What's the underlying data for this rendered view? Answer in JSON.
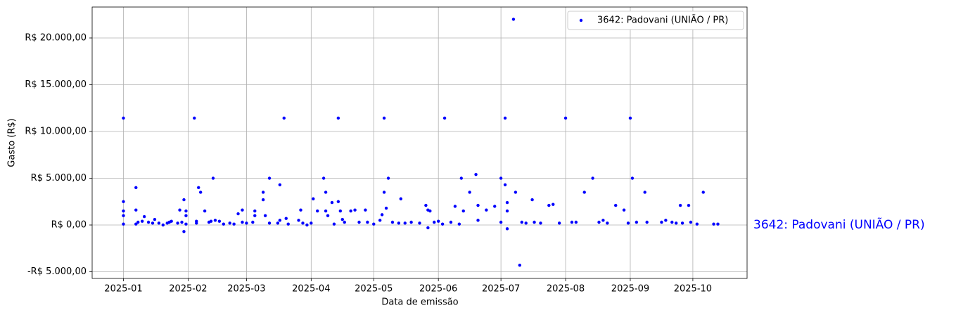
{
  "chart_data": {
    "type": "scatter",
    "x_label": "Data de emissão",
    "y_label": "Gasto (R$)",
    "annotation": "3642: Padovani (UNIÃO / PR)",
    "legend_position": "upper right",
    "grid": true,
    "xlim": [
      "2024-12-17",
      "2025-10-27"
    ],
    "xticks": [
      {
        "value": "2025-01-01",
        "label": "2025-01"
      },
      {
        "value": "2025-02-01",
        "label": "2025-02"
      },
      {
        "value": "2025-03-01",
        "label": "2025-03"
      },
      {
        "value": "2025-04-01",
        "label": "2025-04"
      },
      {
        "value": "2025-05-01",
        "label": "2025-05"
      },
      {
        "value": "2025-06-01",
        "label": "2025-06"
      },
      {
        "value": "2025-07-01",
        "label": "2025-07"
      },
      {
        "value": "2025-08-01",
        "label": "2025-08"
      },
      {
        "value": "2025-09-01",
        "label": "2025-09"
      },
      {
        "value": "2025-10-01",
        "label": "2025-10"
      }
    ],
    "ylim": [
      -5714,
      23308
    ],
    "yticks": [
      {
        "value": -5000,
        "label": "-R$ 5.000,00"
      },
      {
        "value": 0,
        "label": "R$ 0,00"
      },
      {
        "value": 5000,
        "label": "R$ 5.000,00"
      },
      {
        "value": 10000,
        "label": "R$ 10.000,00"
      },
      {
        "value": 15000,
        "label": "R$ 15.000,00"
      },
      {
        "value": 20000,
        "label": "R$ 20.000,00"
      }
    ],
    "series": [
      {
        "name": "3642: Padovani (UNIÃO / PR)",
        "color": "#0000ff",
        "x": [
          "2025-01-01",
          "2025-01-01",
          "2025-01-01",
          "2025-01-01",
          "2025-01-01",
          "2025-01-07",
          "2025-01-07",
          "2025-01-07",
          "2025-01-08",
          "2025-01-10",
          "2025-01-11",
          "2025-01-13",
          "2025-01-15",
          "2025-01-16",
          "2025-01-18",
          "2025-01-20",
          "2025-01-22",
          "2025-01-23",
          "2025-01-24",
          "2025-01-27",
          "2025-01-28",
          "2025-01-29",
          "2025-01-30",
          "2025-01-30",
          "2025-01-31",
          "2025-01-31",
          "2025-01-31",
          "2025-02-04",
          "2025-02-05",
          "2025-02-05",
          "2025-02-06",
          "2025-02-07",
          "2025-02-09",
          "2025-02-11",
          "2025-02-12",
          "2025-02-13",
          "2025-02-14",
          "2025-02-16",
          "2025-02-18",
          "2025-02-21",
          "2025-02-23",
          "2025-02-25",
          "2025-02-27",
          "2025-02-27",
          "2025-03-01",
          "2025-03-04",
          "2025-03-05",
          "2025-03-05",
          "2025-03-09",
          "2025-03-09",
          "2025-03-10",
          "2025-03-12",
          "2025-03-12",
          "2025-03-16",
          "2025-03-17",
          "2025-03-17",
          "2025-03-19",
          "2025-03-20",
          "2025-03-21",
          "2025-03-26",
          "2025-03-27",
          "2025-03-28",
          "2025-03-30",
          "2025-04-01",
          "2025-04-02",
          "2025-04-04",
          "2025-04-07",
          "2025-04-08",
          "2025-04-08",
          "2025-04-09",
          "2025-04-11",
          "2025-04-12",
          "2025-04-14",
          "2025-04-14",
          "2025-04-15",
          "2025-04-16",
          "2025-04-17",
          "2025-04-20",
          "2025-04-22",
          "2025-04-24",
          "2025-04-27",
          "2025-04-28",
          "2025-05-01",
          "2025-05-04",
          "2025-05-05",
          "2025-05-06",
          "2025-05-06",
          "2025-05-07",
          "2025-05-08",
          "2025-05-10",
          "2025-05-13",
          "2025-05-14",
          "2025-05-16",
          "2025-05-19",
          "2025-05-23",
          "2025-05-26",
          "2025-05-27",
          "2025-05-27",
          "2025-05-28",
          "2025-05-30",
          "2025-06-01",
          "2025-06-03",
          "2025-06-04",
          "2025-06-07",
          "2025-06-09",
          "2025-06-11",
          "2025-06-12",
          "2025-06-13",
          "2025-06-16",
          "2025-06-19",
          "2025-06-20",
          "2025-06-20",
          "2025-06-24",
          "2025-06-28",
          "2025-07-01",
          "2025-07-01",
          "2025-07-03",
          "2025-07-03",
          "2025-07-04",
          "2025-07-04",
          "2025-07-04",
          "2025-07-07",
          "2025-07-08",
          "2025-07-10",
          "2025-07-11",
          "2025-07-13",
          "2025-07-16",
          "2025-07-17",
          "2025-07-20",
          "2025-07-24",
          "2025-07-26",
          "2025-07-29",
          "2025-08-01",
          "2025-08-04",
          "2025-08-06",
          "2025-08-10",
          "2025-08-14",
          "2025-08-17",
          "2025-08-19",
          "2025-08-21",
          "2025-08-25",
          "2025-08-29",
          "2025-08-31",
          "2025-09-01",
          "2025-09-02",
          "2025-09-04",
          "2025-09-08",
          "2025-09-09",
          "2025-09-16",
          "2025-09-18",
          "2025-09-21",
          "2025-09-23",
          "2025-09-25",
          "2025-09-26",
          "2025-09-29",
          "2025-09-30",
          "2025-10-03",
          "2025-10-06",
          "2025-10-11",
          "2025-10-13"
        ],
        "values": [
          11430,
          2500,
          1500,
          1000,
          100,
          4000,
          1600,
          100,
          300,
          400,
          900,
          300,
          200,
          600,
          200,
          0,
          200,
          300,
          400,
          200,
          1600,
          300,
          -700,
          2700,
          1500,
          1000,
          100,
          11430,
          200,
          400,
          4000,
          3500,
          1500,
          300,
          400,
          5000,
          500,
          400,
          100,
          200,
          100,
          1200,
          1600,
          300,
          200,
          300,
          1500,
          1000,
          3500,
          2700,
          1000,
          5000,
          200,
          200,
          4300,
          500,
          11430,
          700,
          100,
          500,
          1600,
          200,
          0,
          200,
          2800,
          1500,
          5000,
          3500,
          1500,
          1000,
          2400,
          100,
          2500,
          11430,
          1500,
          600,
          300,
          1500,
          1600,
          300,
          1600,
          300,
          100,
          500,
          1100,
          3500,
          11430,
          1800,
          5000,
          300,
          200,
          2800,
          200,
          300,
          200,
          2100,
          1600,
          -300,
          1500,
          300,
          400,
          100,
          11430,
          300,
          2000,
          100,
          5000,
          1500,
          3500,
          5400,
          2100,
          500,
          1600,
          2000,
          5000,
          300,
          4300,
          11430,
          2400,
          1500,
          -400,
          22000,
          3500,
          -4300,
          300,
          200,
          2700,
          300,
          200,
          2100,
          2200,
          200,
          11430,
          300,
          300,
          3500,
          5000,
          300,
          500,
          200,
          2100,
          1600,
          200,
          11430,
          5000,
          300,
          3500,
          300,
          300,
          500,
          300,
          200,
          2100,
          200,
          2100,
          300,
          100,
          3500,
          100,
          100
        ]
      }
    ]
  }
}
